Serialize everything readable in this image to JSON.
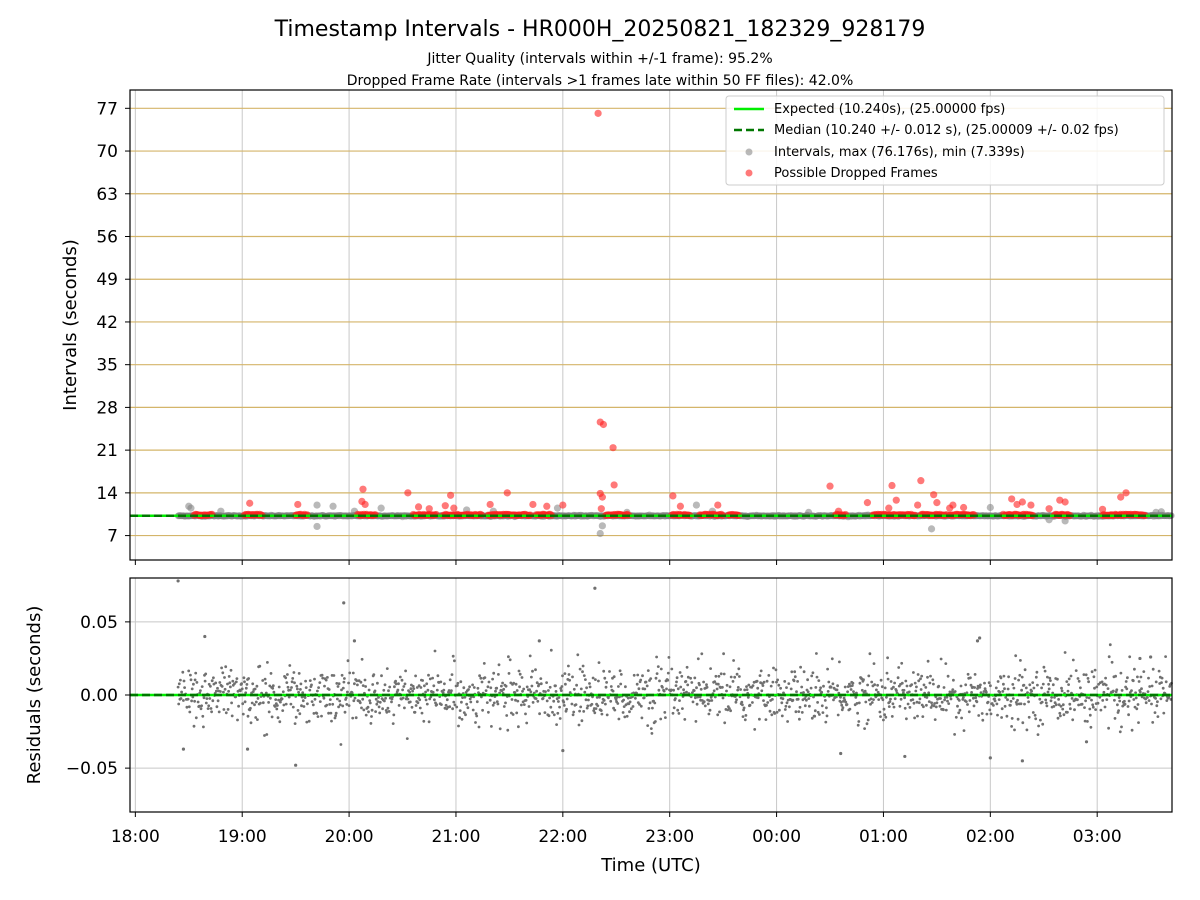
{
  "figure": {
    "title": "Timestamp Intervals - HR000H_20250821_182329_928179",
    "subtitle1": "Jitter Quality (intervals within +/-1 frame): 95.2%",
    "subtitle2": "Dropped Frame Rate (intervals >1 frames late within 50 FF files): 42.0%"
  },
  "colors": {
    "expected": "#00ee00",
    "median": "#007700",
    "intervals": "#808080",
    "dropped": "#ff2020",
    "hgrid_top": "#d4b56a",
    "grid": "#c8c8c8",
    "residual": "#707070"
  },
  "chart_data": [
    {
      "type": "scatter",
      "ylabel": "Intervals (seconds)",
      "ylim": [
        3,
        80
      ],
      "xlim_hours": [
        17.95,
        27.7
      ],
      "yticks": [
        7,
        14,
        21,
        28,
        35,
        42,
        49,
        56,
        63,
        70,
        77
      ],
      "legend_position": "top-right",
      "expected_value": 10.24,
      "median_value": 10.24,
      "legend": [
        {
          "label": "Expected (10.240s), (25.00000 fps)",
          "kind": "solid-line"
        },
        {
          "label": "Median (10.240 +/- 0.012 s), (25.00009 +/- 0.02 fps)",
          "kind": "dashed-line"
        },
        {
          "label": "Intervals, max (76.176s), min (7.339s)",
          "kind": "gray-dot"
        },
        {
          "label": "Possible Dropped Frames",
          "kind": "red-dot"
        }
      ],
      "interval_range": [
        18.4,
        27.7
      ],
      "interval_outliers": [
        [
          18.5,
          11.8
        ],
        [
          18.52,
          11.5
        ],
        [
          18.8,
          11.0
        ],
        [
          19.7,
          12.0
        ],
        [
          19.7,
          8.5
        ],
        [
          19.85,
          11.8
        ],
        [
          20.05,
          11.0
        ],
        [
          20.3,
          11.5
        ],
        [
          21.1,
          11.2
        ],
        [
          21.35,
          11.0
        ],
        [
          21.95,
          11.5
        ],
        [
          22.35,
          7.339
        ],
        [
          22.37,
          8.6
        ],
        [
          22.6,
          10.8
        ],
        [
          23.25,
          12.0
        ],
        [
          23.4,
          11.0
        ],
        [
          24.3,
          10.8
        ],
        [
          25.45,
          8.1
        ],
        [
          26.0,
          11.6
        ],
        [
          26.55,
          9.6
        ],
        [
          26.7,
          9.4
        ],
        [
          27.55,
          10.8
        ],
        [
          27.6,
          10.9
        ]
      ],
      "dropped_frame_clusters": [
        [
          18.55,
          18.72
        ],
        [
          19.02,
          19.2
        ],
        [
          19.5,
          19.62
        ],
        [
          20.08,
          20.25
        ],
        [
          20.6,
          20.82
        ],
        [
          20.88,
          21.25
        ],
        [
          21.3,
          21.7
        ],
        [
          21.75,
          21.9
        ],
        [
          22.4,
          22.62
        ],
        [
          23.02,
          23.2
        ],
        [
          23.28,
          23.5
        ],
        [
          23.55,
          23.65
        ],
        [
          24.55,
          24.65
        ],
        [
          24.9,
          25.3
        ],
        [
          25.35,
          25.6
        ],
        [
          25.62,
          25.85
        ],
        [
          26.12,
          26.28
        ],
        [
          26.3,
          26.4
        ],
        [
          26.6,
          26.75
        ],
        [
          27.05,
          27.45
        ]
      ],
      "dropped_frames": [
        [
          19.07,
          12.3
        ],
        [
          19.52,
          12.1
        ],
        [
          20.12,
          12.6
        ],
        [
          20.15,
          12.1
        ],
        [
          20.13,
          14.6
        ],
        [
          20.55,
          14.0
        ],
        [
          20.65,
          11.7
        ],
        [
          20.75,
          11.4
        ],
        [
          20.9,
          11.9
        ],
        [
          20.95,
          13.6
        ],
        [
          20.98,
          11.5
        ],
        [
          21.32,
          12.1
        ],
        [
          21.48,
          14.0
        ],
        [
          21.72,
          12.1
        ],
        [
          21.85,
          11.8
        ],
        [
          22.0,
          12.0
        ],
        [
          22.33,
          76.176
        ],
        [
          22.35,
          25.6
        ],
        [
          22.38,
          25.2
        ],
        [
          22.35,
          13.9
        ],
        [
          22.37,
          13.3
        ],
        [
          22.36,
          11.4
        ],
        [
          22.47,
          21.4
        ],
        [
          22.48,
          15.3
        ],
        [
          23.03,
          13.5
        ],
        [
          23.1,
          11.8
        ],
        [
          23.45,
          12.0
        ],
        [
          24.5,
          15.1
        ],
        [
          24.58,
          11.0
        ],
        [
          24.85,
          12.4
        ],
        [
          25.08,
          15.2
        ],
        [
          25.12,
          12.8
        ],
        [
          25.05,
          11.5
        ],
        [
          25.35,
          16.0
        ],
        [
          25.32,
          12.0
        ],
        [
          25.47,
          13.7
        ],
        [
          25.5,
          12.4
        ],
        [
          25.62,
          11.5
        ],
        [
          25.65,
          12.0
        ],
        [
          25.75,
          11.6
        ],
        [
          26.2,
          13.0
        ],
        [
          26.25,
          12.1
        ],
        [
          26.3,
          12.5
        ],
        [
          26.38,
          12.0
        ],
        [
          26.55,
          11.4
        ],
        [
          26.65,
          12.8
        ],
        [
          26.7,
          12.5
        ],
        [
          27.05,
          11.3
        ],
        [
          27.22,
          13.3
        ],
        [
          27.27,
          14.0
        ]
      ]
    },
    {
      "type": "scatter",
      "ylabel": "Residuals (seconds)",
      "xlabel": "Time (UTC)",
      "ylim": [
        -0.08,
        0.08
      ],
      "xlim_hours": [
        17.95,
        27.7
      ],
      "yticks": [
        -0.05,
        0.0,
        0.05
      ],
      "ytick_labels": [
        "−0.05",
        "0.00",
        "0.05"
      ],
      "xticks_hours": [
        18,
        19,
        20,
        21,
        22,
        23,
        24,
        25,
        26,
        27
      ],
      "xtick_labels": [
        "18:00",
        "19:00",
        "20:00",
        "21:00",
        "22:00",
        "23:00",
        "00:00",
        "01:00",
        "02:00",
        "03:00"
      ],
      "residual_range": [
        18.4,
        27.7
      ],
      "residual_outliers": [
        [
          18.4,
          0.078
        ],
        [
          22.3,
          0.073
        ],
        [
          19.95,
          0.063
        ],
        [
          19.5,
          -0.048
        ],
        [
          26.3,
          -0.045
        ],
        [
          26.0,
          -0.043
        ],
        [
          24.6,
          -0.04
        ],
        [
          25.2,
          -0.042
        ],
        [
          18.65,
          0.04
        ],
        [
          20.05,
          0.037
        ],
        [
          21.78,
          0.037
        ],
        [
          25.88,
          0.037
        ],
        [
          25.9,
          0.039
        ],
        [
          18.45,
          -0.037
        ],
        [
          19.05,
          -0.037
        ],
        [
          22.0,
          -0.038
        ],
        [
          26.9,
          -0.032
        ],
        [
          27.5,
          0.026
        ],
        [
          27.4,
          0.025
        ]
      ]
    }
  ]
}
